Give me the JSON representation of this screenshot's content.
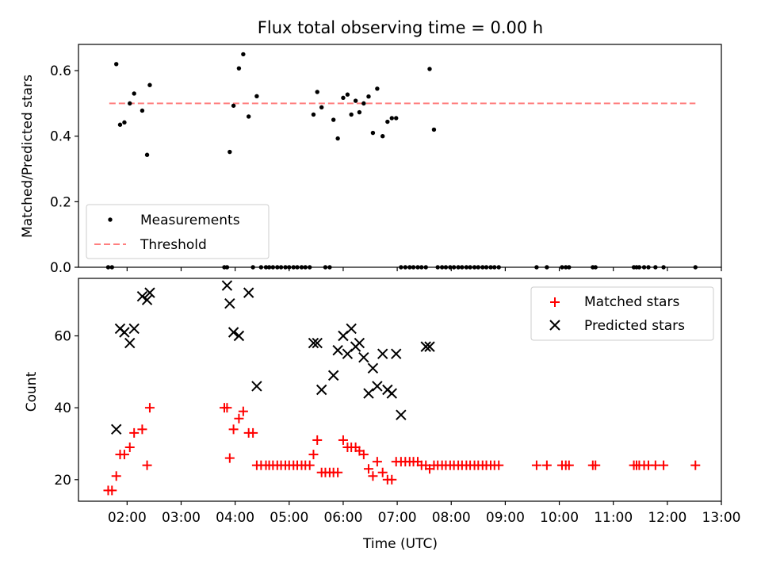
{
  "title": "Flux total observing time = 0.00 h",
  "chart_data": [
    {
      "type": "scatter",
      "panel": "top",
      "ylabel": "Matched/Predicted stars",
      "xlabel": "",
      "xlim": [
        1.1,
        13.0
      ],
      "ylim": [
        0.0,
        0.68
      ],
      "yticks": [
        0.0,
        0.2,
        0.4,
        0.6
      ],
      "ytick_labels": [
        "0.0",
        "0.2",
        "0.4",
        "0.6"
      ],
      "legend_position": "lower-left",
      "legend": [
        "Measurements",
        "Threshold"
      ],
      "threshold": {
        "name": "Threshold",
        "value": 0.5,
        "x_range": [
          1.67,
          12.52
        ],
        "color": "#ff7f7f"
      },
      "series": [
        {
          "name": "Measurements",
          "color": "#000000",
          "x": [
            1.65,
            1.72,
            1.8,
            1.87,
            1.95,
            2.05,
            2.13,
            2.28,
            2.37,
            2.42,
            3.8,
            3.85,
            3.9,
            3.97,
            4.07,
            4.15,
            4.25,
            4.33,
            4.4,
            4.48,
            4.57,
            4.63,
            4.7,
            4.78,
            4.85,
            4.93,
            5.0,
            5.08,
            5.15,
            5.23,
            5.3,
            5.38,
            5.45,
            5.52,
            5.6,
            5.67,
            5.75,
            5.82,
            5.9,
            6.0,
            6.08,
            6.15,
            6.23,
            6.3,
            6.38,
            6.47,
            6.55,
            6.63,
            6.73,
            6.82,
            6.9,
            6.98,
            7.07,
            7.15,
            7.23,
            7.3,
            7.38,
            7.45,
            7.53,
            7.6,
            7.68,
            7.75,
            7.83,
            7.9,
            7.98,
            8.05,
            8.13,
            8.2,
            8.28,
            8.35,
            8.43,
            8.5,
            8.58,
            8.65,
            8.73,
            8.8,
            8.88,
            9.58,
            9.77,
            10.05,
            10.12,
            10.18,
            10.62,
            10.67,
            11.38,
            11.43,
            11.48,
            11.57,
            11.65,
            11.78,
            11.93,
            12.52
          ],
          "y": [
            0.0,
            0.0,
            0.62,
            0.435,
            0.442,
            0.5,
            0.53,
            0.478,
            0.343,
            0.556,
            0.0,
            0.0,
            0.352,
            0.493,
            0.607,
            0.65,
            0.46,
            0.0,
            0.522,
            0.0,
            0.0,
            0.0,
            0.0,
            0.0,
            0.0,
            0.0,
            0.0,
            0.0,
            0.0,
            0.0,
            0.0,
            0.0,
            0.466,
            0.535,
            0.488,
            0.0,
            0.0,
            0.45,
            0.393,
            0.517,
            0.527,
            0.466,
            0.508,
            0.473,
            0.5,
            0.521,
            0.41,
            0.545,
            0.4,
            0.444,
            0.455,
            0.455,
            0.0,
            0.0,
            0.0,
            0.0,
            0.0,
            0.0,
            0.0,
            0.605,
            0.42,
            0.0,
            0.0,
            0.0,
            0.0,
            0.0,
            0.0,
            0.0,
            0.0,
            0.0,
            0.0,
            0.0,
            0.0,
            0.0,
            0.0,
            0.0,
            0.0,
            0.0,
            0.0,
            0.0,
            0.0,
            0.0,
            0.0,
            0.0,
            0.0,
            0.0,
            0.0,
            0.0,
            0.0,
            0.0,
            0.0,
            0.0
          ]
        }
      ]
    },
    {
      "type": "scatter",
      "panel": "bottom",
      "ylabel": "Count",
      "xlabel": "Time (UTC)",
      "xlim": [
        1.1,
        13.0
      ],
      "ylim": [
        14,
        76
      ],
      "yticks": [
        20,
        40,
        60
      ],
      "ytick_labels": [
        "20",
        "40",
        "60"
      ],
      "xticks": [
        2,
        3,
        4,
        5,
        6,
        7,
        8,
        9,
        10,
        11,
        12,
        13
      ],
      "xtick_labels": [
        "02:00",
        "03:00",
        "04:00",
        "05:00",
        "06:00",
        "07:00",
        "08:00",
        "09:00",
        "10:00",
        "11:00",
        "12:00",
        "13:00"
      ],
      "legend_position": "top-right",
      "legend": [
        "Matched stars",
        "Predicted stars"
      ],
      "series": [
        {
          "name": "Matched stars",
          "marker": "+",
          "color": "#ff0000",
          "x": [
            1.65,
            1.72,
            1.8,
            1.87,
            1.95,
            2.05,
            2.13,
            2.28,
            2.37,
            2.42,
            3.8,
            3.85,
            3.9,
            3.97,
            4.07,
            4.15,
            4.25,
            4.33,
            4.4,
            4.48,
            4.57,
            4.63,
            4.7,
            4.78,
            4.85,
            4.93,
            5.0,
            5.08,
            5.15,
            5.23,
            5.3,
            5.38,
            5.45,
            5.52,
            5.6,
            5.67,
            5.75,
            5.82,
            5.9,
            6.0,
            6.08,
            6.15,
            6.23,
            6.3,
            6.38,
            6.47,
            6.55,
            6.63,
            6.73,
            6.82,
            6.9,
            6.98,
            7.07,
            7.15,
            7.23,
            7.3,
            7.38,
            7.45,
            7.53,
            7.6,
            7.68,
            7.75,
            7.83,
            7.9,
            7.98,
            8.05,
            8.13,
            8.2,
            8.28,
            8.35,
            8.43,
            8.5,
            8.58,
            8.65,
            8.73,
            8.8,
            8.88,
            9.58,
            9.77,
            10.05,
            10.12,
            10.18,
            10.62,
            10.67,
            11.38,
            11.43,
            11.48,
            11.57,
            11.65,
            11.78,
            11.93,
            12.52
          ],
          "y": [
            17,
            17,
            21,
            27,
            27,
            29,
            33,
            34,
            24,
            40,
            40,
            40,
            26,
            34,
            37,
            39,
            33,
            33,
            24,
            24,
            24,
            24,
            24,
            24,
            24,
            24,
            24,
            24,
            24,
            24,
            24,
            24,
            27,
            31,
            22,
            22,
            22,
            22,
            22,
            31,
            29,
            29,
            29,
            28,
            27,
            23,
            21,
            25,
            22,
            20,
            20,
            25,
            25,
            25,
            25,
            25,
            25,
            24,
            24,
            23,
            24,
            24,
            24,
            24,
            24,
            24,
            24,
            24,
            24,
            24,
            24,
            24,
            24,
            24,
            24,
            24,
            24,
            24,
            24,
            24,
            24,
            24,
            24,
            24,
            24,
            24,
            24,
            24,
            24,
            24,
            24,
            24
          ]
        },
        {
          "name": "Predicted stars",
          "marker": "x",
          "color": "#000000",
          "x": [
            1.8,
            1.87,
            1.95,
            2.05,
            2.13,
            2.28,
            2.37,
            2.42,
            3.85,
            3.9,
            3.97,
            4.07,
            4.25,
            4.4,
            5.45,
            5.52,
            5.6,
            5.82,
            5.9,
            6.0,
            6.08,
            6.15,
            6.23,
            6.3,
            6.38,
            6.47,
            6.55,
            6.63,
            6.73,
            6.82,
            6.9,
            6.98,
            7.07,
            7.53,
            7.6
          ],
          "y": [
            34,
            62,
            61,
            58,
            62,
            71,
            70,
            72,
            74,
            69,
            61,
            60,
            72,
            46,
            58,
            58,
            45,
            49,
            56,
            60,
            55,
            62,
            57,
            58,
            54,
            44,
            51,
            46,
            55,
            45,
            44,
            55,
            38,
            57,
            57
          ]
        }
      ]
    }
  ]
}
